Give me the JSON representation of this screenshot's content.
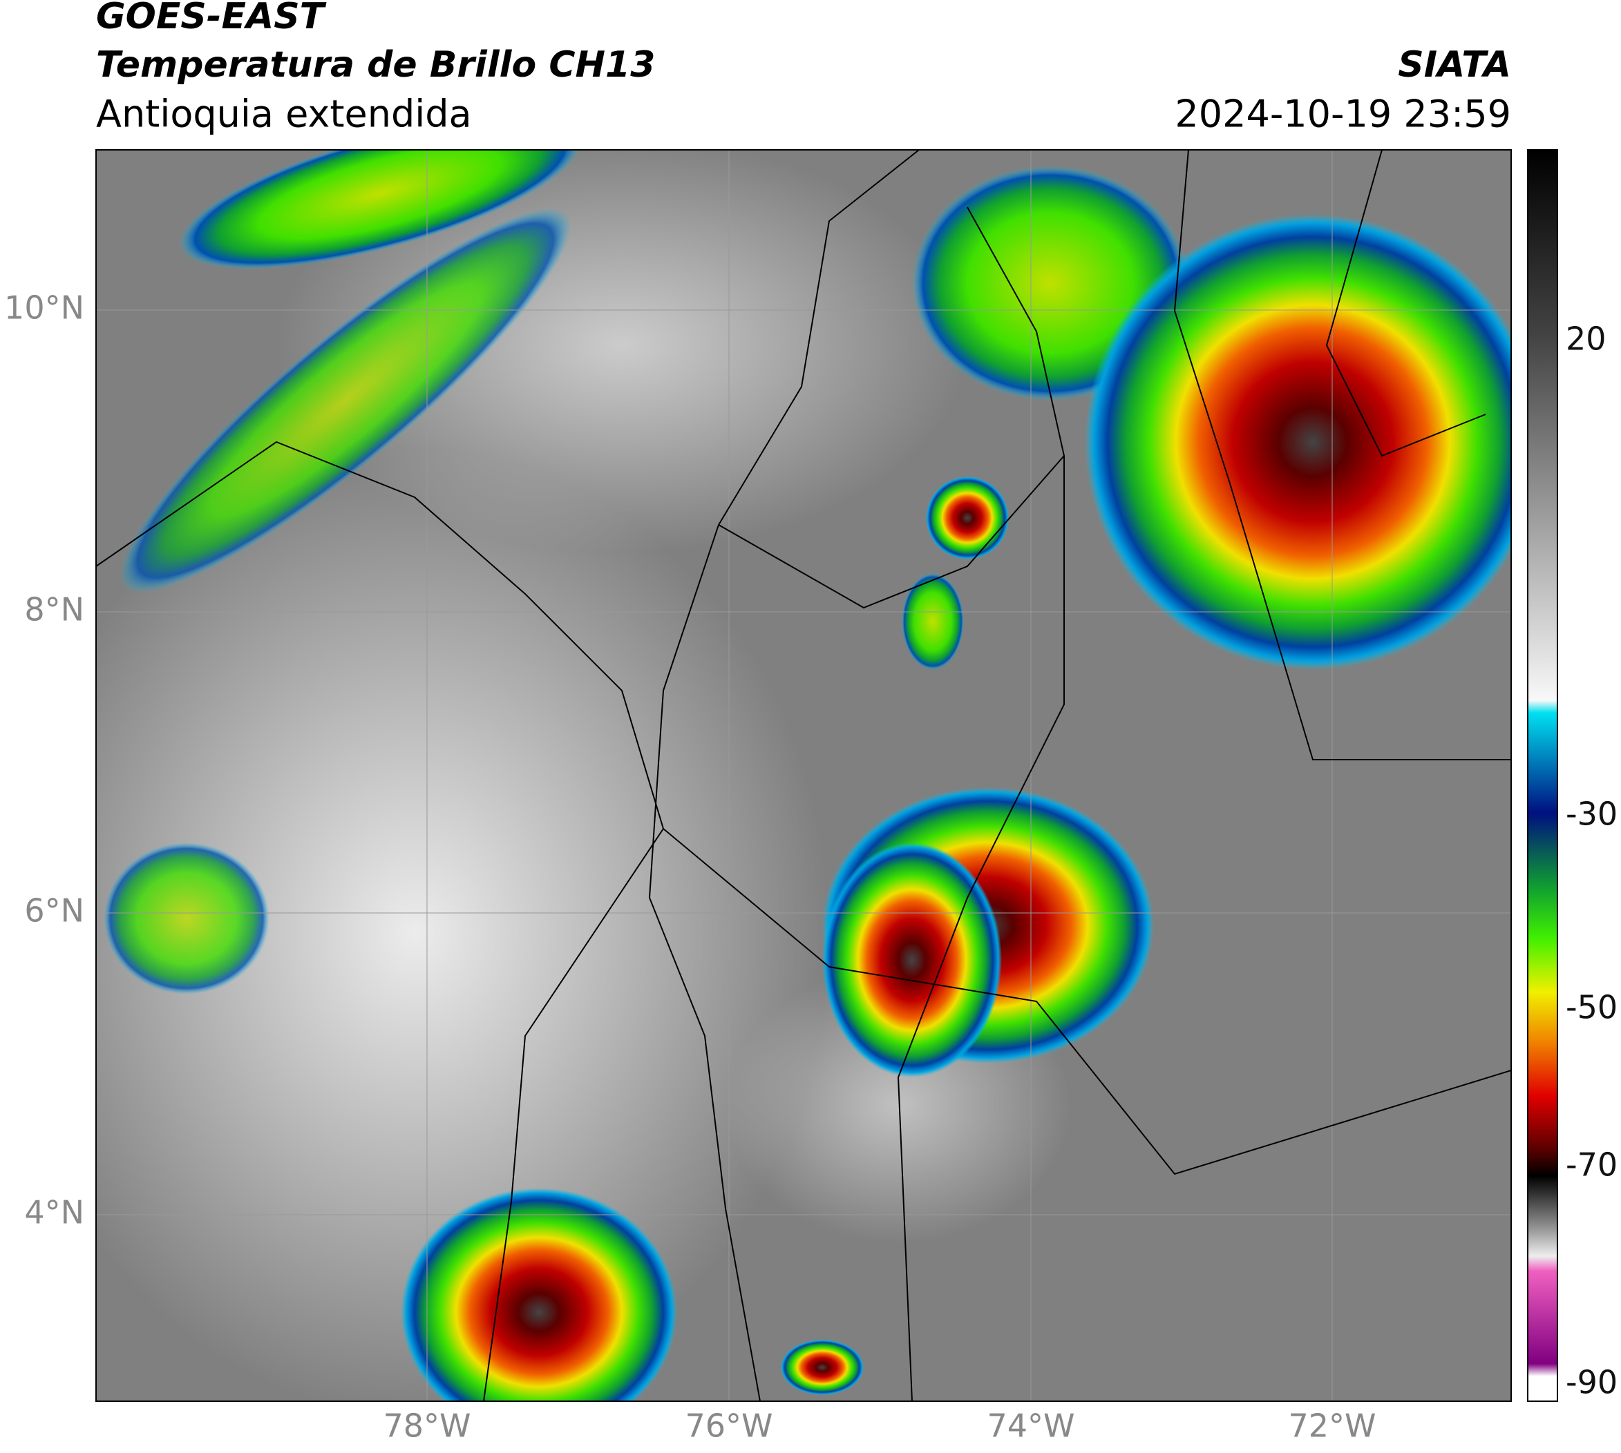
{
  "header": {
    "title": "GOES-EAST",
    "subtitle": "Temperatura de Brillo CH13",
    "region": "Antioquia extendida",
    "source": "SIATA",
    "datetime": "2024-10-19 23:59"
  },
  "map": {
    "lat_labels": [
      "10°N",
      "8°N",
      "6°N",
      "4°N"
    ],
    "lon_labels": [
      "78°W",
      "76°W",
      "74°W",
      "72°W"
    ]
  },
  "colorbar": {
    "ticks": [
      20,
      -30,
      -50,
      -70,
      -90
    ]
  }
}
